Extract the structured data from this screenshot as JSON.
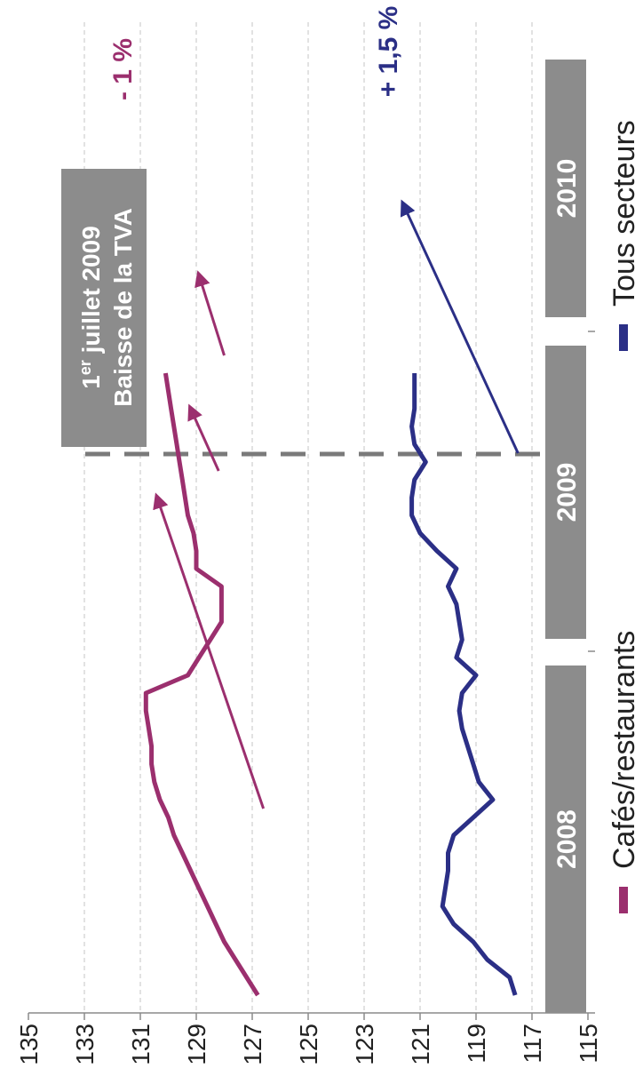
{
  "chart_data": {
    "type": "line",
    "ylim": [
      115,
      135
    ],
    "y_ticks": [
      "115",
      "117",
      "119",
      "121",
      "123",
      "125",
      "127",
      "129",
      "131",
      "133",
      "135"
    ],
    "grid": true,
    "legend_placement": "bottom",
    "years": [
      "2008",
      "2009",
      "2010"
    ],
    "x_month_index": [
      1,
      2,
      3,
      4,
      5,
      6,
      7,
      8,
      9,
      10,
      11,
      12,
      13,
      14,
      15,
      16,
      17,
      18,
      19,
      20,
      21,
      22,
      23,
      24,
      25,
      26,
      27,
      28,
      29,
      30,
      31,
      32,
      33,
      34,
      35,
      36
    ],
    "series": [
      {
        "name": "Cafés/restaurants",
        "color": "#9b2f6e",
        "values": [
          126.8,
          127.2,
          127.6,
          128.0,
          128.3,
          128.6,
          128.9,
          129.2,
          129.5,
          129.8,
          130.0,
          130.3,
          130.5,
          130.6,
          130.6,
          130.7,
          130.8,
          130.8,
          129.3,
          128.9,
          128.5,
          128.1,
          128.1,
          128.1,
          129.0,
          129.0,
          129.1,
          129.3,
          129.4,
          129.5,
          129.6,
          129.7,
          129.8,
          129.9,
          130.0,
          130.1
        ],
        "trend_arrows": [
          {
            "from": [
              11.5,
              126.6
            ],
            "to": [
              29.0,
              130.4
            ]
          },
          {
            "from": [
              30.5,
              128.2
            ],
            "to": [
              34.0,
              129.2
            ]
          },
          {
            "from": [
              37.0,
              128.0
            ],
            "to": [
              41.5,
              128.9
            ]
          }
        ],
        "change_label": "- 1 %"
      },
      {
        "name": "Tous secteurs",
        "color": "#2b2f86",
        "values": [
          117.6,
          117.8,
          118.6,
          119.1,
          119.8,
          120.2,
          120.1,
          120.0,
          120.0,
          119.8,
          119.1,
          118.4,
          118.9,
          119.1,
          119.3,
          119.5,
          119.6,
          119.5,
          119.0,
          119.7,
          119.5,
          119.6,
          119.7,
          120.0,
          119.7,
          120.4,
          121.0,
          121.3,
          121.3,
          121.2,
          120.8,
          121.2,
          121.3,
          121.2,
          121.2,
          121.2
        ],
        "trend_arrows": [
          {
            "from": [
              31.5,
              117.5
            ],
            "to": [
              45.5,
              121.6
            ]
          }
        ],
        "change_label": "+ 1,5 %"
      }
    ],
    "event": {
      "x": 31.2,
      "label_line1_main": "1",
      "label_line1_sup": "er",
      "label_line1_rest": " juillet 2009",
      "label_line2": "Baisse de la TVA"
    }
  },
  "colors": {
    "year_band": "#8c8c8c",
    "annotation_box": "#8c8c8c",
    "event_line": "#7a7a7a",
    "grid": "#cfcfcf",
    "axis": "#8a8a8a"
  }
}
